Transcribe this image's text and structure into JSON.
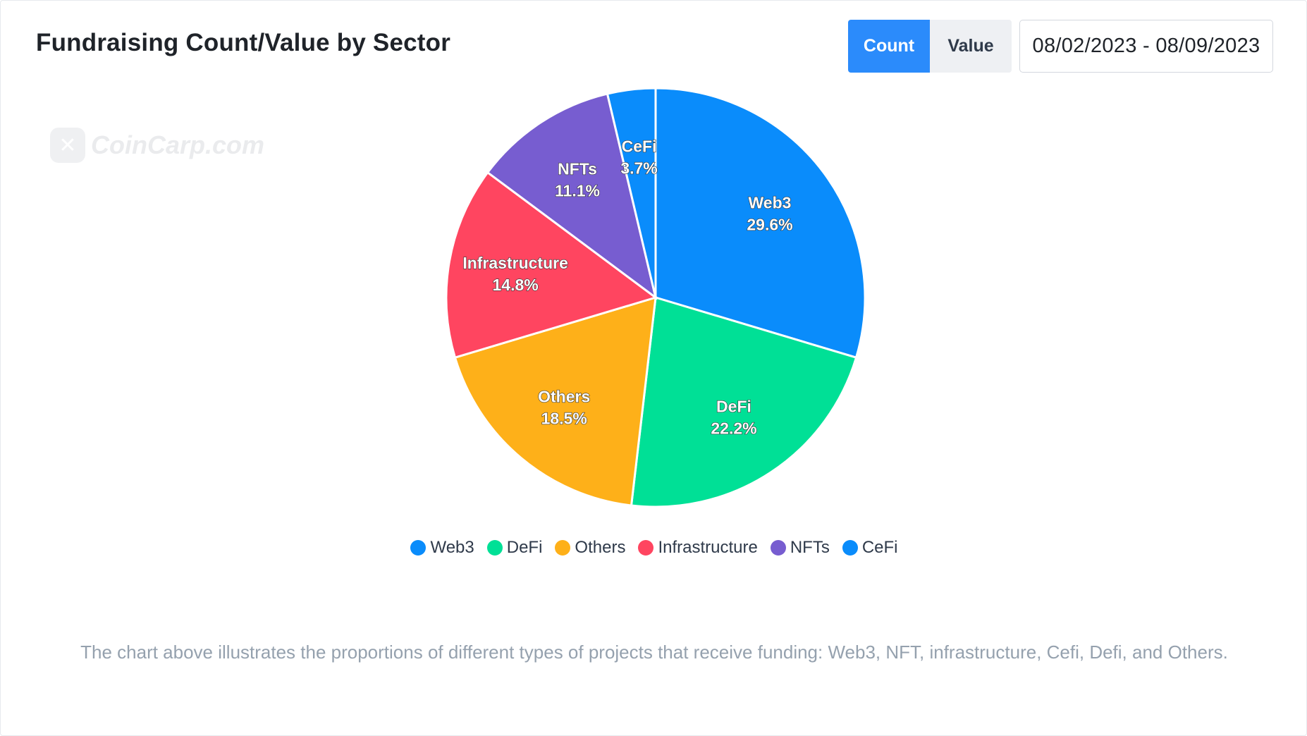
{
  "header": {
    "title": "Fundraising Count/Value by Sector",
    "toggle": {
      "count_label": "Count",
      "value_label": "Value",
      "selected": "Count"
    },
    "date_range": "08/02/2023 - 08/09/2023"
  },
  "watermark": {
    "logo_glyph": "✕",
    "text": "CoinCarp.com"
  },
  "chart_data": {
    "type": "pie",
    "title": "Fundraising Count/Value by Sector",
    "slices": [
      {
        "label": "Web3",
        "value": 29.6,
        "display": "29.6%",
        "color": "#0a8cfb"
      },
      {
        "label": "DeFi",
        "value": 22.2,
        "display": "22.2%",
        "color": "#00e096"
      },
      {
        "label": "Others",
        "value": 18.5,
        "display": "18.5%",
        "color": "#feb019"
      },
      {
        "label": "Infrastructure",
        "value": 14.8,
        "display": "14.8%",
        "color": "#ff4560"
      },
      {
        "label": "NFTs",
        "value": 11.1,
        "display": "11.1%",
        "color": "#775dd0"
      },
      {
        "label": "CeFi",
        "value": 3.7,
        "display": "3.7%",
        "color": "#0a8cfb"
      }
    ],
    "legend_position": "bottom"
  },
  "caption": "The chart above illustrates the proportions of different types of projects that receive funding: Web3, NFT, infrastructure, Cefi, Defi, and Others."
}
